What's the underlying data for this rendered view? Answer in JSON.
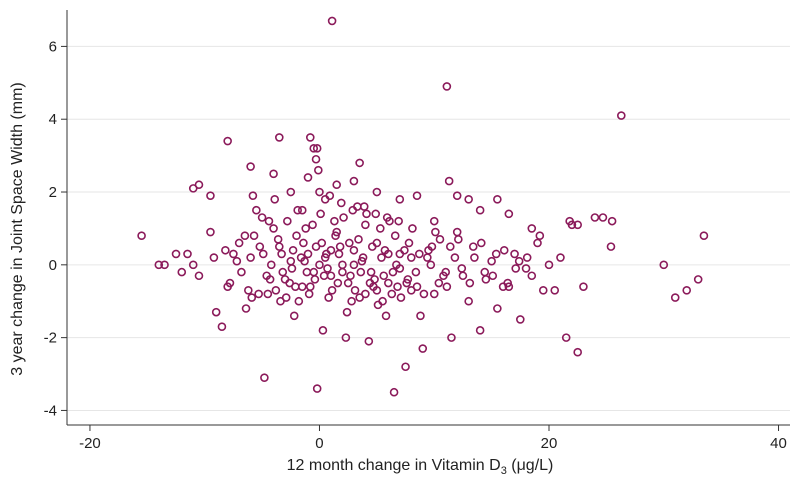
{
  "chart_data": {
    "type": "scatter",
    "title": "",
    "xlabel_main": "12 month change in Vitamin D",
    "xlabel_sub": "3",
    "xlabel_unit": " (μg/L)",
    "ylabel": "3 year change in Joint Space Width (mm)",
    "xlim": [
      -22,
      41
    ],
    "ylim": [
      -4.4,
      7.0
    ],
    "xticks": [
      -20,
      0,
      20,
      40
    ],
    "yticks": [
      -4,
      -2,
      0,
      2,
      4,
      6
    ],
    "xtick_labels": [
      "-20",
      "0",
      "20",
      "40"
    ],
    "ytick_labels": [
      "-4",
      "-2",
      "0",
      "2",
      "4",
      "6"
    ],
    "grid": true,
    "marker_color": "#8b1a5a",
    "points": [
      [
        1.1,
        6.7
      ],
      [
        11.1,
        4.9
      ],
      [
        26.3,
        4.1
      ],
      [
        -8.0,
        3.4
      ],
      [
        -3.5,
        3.5
      ],
      [
        -0.8,
        3.5
      ],
      [
        -0.5,
        3.2
      ],
      [
        -0.2,
        3.2
      ],
      [
        -0.3,
        2.9
      ],
      [
        -6.0,
        2.7
      ],
      [
        -11.0,
        2.1
      ],
      [
        -10.5,
        2.2
      ],
      [
        -9.5,
        1.9
      ],
      [
        -5.8,
        1.9
      ],
      [
        -4.0,
        2.5
      ],
      [
        -2.5,
        2.0
      ],
      [
        -1.5,
        1.5
      ],
      [
        -1.0,
        2.4
      ],
      [
        0.0,
        2.0
      ],
      [
        0.5,
        1.8
      ],
      [
        1.5,
        2.2
      ],
      [
        3.0,
        2.3
      ],
      [
        3.5,
        2.8
      ],
      [
        5.0,
        2.0
      ],
      [
        11.3,
        2.3
      ],
      [
        7.0,
        1.8
      ],
      [
        8.5,
        1.9
      ],
      [
        10.0,
        1.2
      ],
      [
        12.0,
        1.9
      ],
      [
        13.0,
        1.8
      ],
      [
        14.0,
        1.5
      ],
      [
        15.5,
        1.8
      ],
      [
        16.5,
        1.4
      ],
      [
        18.5,
        1.0
      ],
      [
        21.8,
        1.2
      ],
      [
        22.0,
        1.1
      ],
      [
        22.5,
        1.1
      ],
      [
        24.0,
        1.3
      ],
      [
        24.7,
        1.3
      ],
      [
        25.5,
        1.2
      ],
      [
        25.4,
        0.5
      ],
      [
        19.2,
        0.8
      ],
      [
        -15.5,
        0.8
      ],
      [
        -14.0,
        0.0
      ],
      [
        -13.5,
        0.0
      ],
      [
        -12.5,
        0.3
      ],
      [
        -12.0,
        -0.2
      ],
      [
        -11.5,
        0.3
      ],
      [
        -11.0,
        0.0
      ],
      [
        -10.5,
        -0.3
      ],
      [
        -9.5,
        0.9
      ],
      [
        -9.0,
        -1.3
      ],
      [
        -8.5,
        -1.7
      ],
      [
        -8.0,
        -0.6
      ],
      [
        -7.8,
        -0.5
      ],
      [
        -7.5,
        0.3
      ],
      [
        -7.0,
        0.6
      ],
      [
        -6.5,
        0.8
      ],
      [
        -6.0,
        0.2
      ],
      [
        -5.5,
        1.5
      ],
      [
        -5.0,
        1.3
      ],
      [
        -5.3,
        -0.8
      ],
      [
        -4.8,
        -3.1
      ],
      [
        -4.5,
        -0.8
      ],
      [
        -4.0,
        1.0
      ],
      [
        -3.5,
        0.5
      ],
      [
        -3.0,
        -0.4
      ],
      [
        -2.5,
        0.1
      ],
      [
        -2.0,
        0.8
      ],
      [
        -1.5,
        -0.6
      ],
      [
        -1.0,
        0.3
      ],
      [
        -0.5,
        -0.2
      ],
      [
        -0.2,
        -3.4
      ],
      [
        0.2,
        0.6
      ],
      [
        0.5,
        0.2
      ],
      [
        1.0,
        -0.3
      ],
      [
        1.5,
        0.9
      ],
      [
        2.0,
        0.0
      ],
      [
        2.5,
        -0.5
      ],
      [
        3.0,
        0.4
      ],
      [
        3.5,
        -0.9
      ],
      [
        4.0,
        1.1
      ],
      [
        4.5,
        -0.2
      ],
      [
        5.0,
        0.6
      ],
      [
        5.5,
        -1.0
      ],
      [
        6.0,
        0.3
      ],
      [
        6.5,
        -3.5
      ],
      [
        7.0,
        -0.1
      ],
      [
        7.5,
        -2.8
      ],
      [
        8.0,
        0.2
      ],
      [
        8.5,
        -0.6
      ],
      [
        9.0,
        -2.3
      ],
      [
        9.5,
        0.4
      ],
      [
        10.0,
        -0.8
      ],
      [
        10.5,
        0.7
      ],
      [
        11.0,
        -0.2
      ],
      [
        11.5,
        -2.0
      ],
      [
        12.0,
        0.9
      ],
      [
        12.5,
        -0.3
      ],
      [
        13.0,
        -1.0
      ],
      [
        13.5,
        0.2
      ],
      [
        14.0,
        -1.8
      ],
      [
        14.5,
        -0.4
      ],
      [
        15.0,
        0.1
      ],
      [
        15.5,
        -1.2
      ],
      [
        16.0,
        -0.6
      ],
      [
        16.5,
        -0.6
      ],
      [
        17.0,
        0.3
      ],
      [
        17.5,
        -1.5
      ],
      [
        18.0,
        -0.1
      ],
      [
        18.5,
        -0.3
      ],
      [
        19.0,
        0.6
      ],
      [
        19.5,
        -0.7
      ],
      [
        20.0,
        0.0
      ],
      [
        20.5,
        -0.7
      ],
      [
        21.0,
        0.2
      ],
      [
        21.5,
        -2.0
      ],
      [
        22.5,
        -2.4
      ],
      [
        23.0,
        -0.6
      ],
      [
        30.0,
        0.0
      ],
      [
        31.0,
        -0.9
      ],
      [
        32.0,
        -0.7
      ],
      [
        33.0,
        -0.4
      ],
      [
        33.5,
        0.8
      ],
      [
        -6.8,
        -0.2
      ],
      [
        -3.8,
        -0.7
      ],
      [
        -2.8,
        1.2
      ],
      [
        -1.8,
        -1.0
      ],
      [
        -0.8,
        -0.6
      ],
      [
        0.8,
        -0.9
      ],
      [
        1.8,
        0.5
      ],
      [
        2.8,
        -1.0
      ],
      [
        3.8,
        0.2
      ],
      [
        4.8,
        -0.4
      ],
      [
        5.8,
        -1.4
      ],
      [
        6.8,
        -0.6
      ],
      [
        7.8,
        0.6
      ],
      [
        8.8,
        -1.4
      ],
      [
        9.8,
        0.5
      ],
      [
        10.8,
        -0.3
      ],
      [
        11.8,
        0.2
      ],
      [
        -2.2,
        -1.4
      ],
      [
        -1.2,
        1.0
      ],
      [
        0.3,
        -1.8
      ],
      [
        1.3,
        1.2
      ],
      [
        2.3,
        -2.0
      ],
      [
        3.3,
        1.6
      ],
      [
        4.3,
        -2.1
      ],
      [
        5.3,
        1.0
      ],
      [
        6.3,
        -0.8
      ],
      [
        -4.2,
        0.0
      ],
      [
        -3.2,
        -0.2
      ],
      [
        -2.3,
        0.4
      ],
      [
        -1.3,
        0.1
      ],
      [
        -0.3,
        0.5
      ],
      [
        0.7,
        -0.1
      ],
      [
        1.7,
        0.3
      ],
      [
        2.7,
        -0.3
      ],
      [
        3.7,
        0.1
      ],
      [
        4.7,
        -0.6
      ],
      [
        5.7,
        0.4
      ],
      [
        6.7,
        0.0
      ],
      [
        7.7,
        -0.4
      ],
      [
        8.7,
        0.3
      ],
      [
        9.7,
        0.0
      ],
      [
        -5.2,
        0.5
      ],
      [
        -4.3,
        -0.4
      ],
      [
        -3.3,
        0.3
      ],
      [
        -2.4,
        -0.1
      ],
      [
        -1.4,
        0.6
      ],
      [
        -0.4,
        -0.4
      ],
      [
        0.6,
        0.3
      ],
      [
        1.6,
        -0.5
      ],
      [
        2.6,
        0.6
      ],
      [
        3.6,
        -0.2
      ],
      [
        4.6,
        0.5
      ],
      [
        5.6,
        -0.3
      ],
      [
        6.6,
        0.8
      ],
      [
        7.6,
        -0.5
      ],
      [
        -6.2,
        -0.7
      ],
      [
        -5.7,
        0.8
      ],
      [
        -3.9,
        1.8
      ],
      [
        -2.9,
        -0.9
      ],
      [
        -1.9,
        1.5
      ],
      [
        -0.9,
        -0.8
      ],
      [
        0.1,
        1.4
      ],
      [
        1.1,
        -0.7
      ],
      [
        2.1,
        1.3
      ],
      [
        3.1,
        -0.7
      ],
      [
        4.1,
        1.4
      ],
      [
        5.1,
        -1.1
      ],
      [
        6.1,
        1.2
      ],
      [
        7.1,
        -0.9
      ],
      [
        8.1,
        1.0
      ],
      [
        9.1,
        -0.8
      ],
      [
        10.1,
        0.9
      ],
      [
        11.1,
        -0.6
      ],
      [
        12.1,
        0.7
      ],
      [
        13.1,
        -0.5
      ],
      [
        14.1,
        0.6
      ],
      [
        15.1,
        -0.3
      ],
      [
        16.1,
        0.4
      ],
      [
        17.1,
        -0.1
      ],
      [
        18.1,
        0.2
      ],
      [
        -7.2,
        0.1
      ],
      [
        -6.4,
        -1.2
      ],
      [
        -4.6,
        -0.3
      ],
      [
        -3.6,
        0.7
      ],
      [
        -2.6,
        -0.5
      ],
      [
        -1.6,
        0.2
      ],
      [
        -0.6,
        1.1
      ],
      [
        0.4,
        -0.3
      ],
      [
        1.4,
        0.8
      ],
      [
        2.4,
        -1.3
      ],
      [
        3.4,
        0.7
      ],
      [
        4.4,
        -0.5
      ],
      [
        5.4,
        0.2
      ],
      [
        6.4,
        -0.2
      ],
      [
        7.4,
        0.4
      ],
      [
        8.4,
        -0.2
      ],
      [
        9.4,
        0.2
      ],
      [
        10.4,
        -0.5
      ],
      [
        11.4,
        0.5
      ],
      [
        12.4,
        -0.1
      ],
      [
        13.4,
        0.5
      ],
      [
        14.4,
        -0.2
      ],
      [
        15.4,
        0.3
      ],
      [
        16.4,
        -0.5
      ],
      [
        17.4,
        0.1
      ],
      [
        -8.2,
        0.4
      ],
      [
        -9.2,
        0.2
      ],
      [
        -5.9,
        -0.9
      ],
      [
        -4.9,
        0.3
      ],
      [
        -0.1,
        2.6
      ],
      [
        0.9,
        1.9
      ],
      [
        1.9,
        1.7
      ],
      [
        2.9,
        1.5
      ],
      [
        3.9,
        1.6
      ],
      [
        4.9,
        1.4
      ],
      [
        5.9,
        1.3
      ],
      [
        6.9,
        1.2
      ],
      [
        -4.4,
        1.2
      ],
      [
        -3.4,
        -1.0
      ],
      [
        -2.1,
        -0.6
      ],
      [
        -1.1,
        -0.2
      ],
      [
        0.0,
        0.0
      ],
      [
        1.0,
        0.4
      ],
      [
        2.0,
        -0.2
      ],
      [
        3.0,
        0.0
      ],
      [
        4.0,
        -0.8
      ],
      [
        5.0,
        -0.7
      ],
      [
        6.0,
        -0.5
      ],
      [
        7.0,
        0.3
      ],
      [
        8.0,
        -0.7
      ]
    ]
  }
}
